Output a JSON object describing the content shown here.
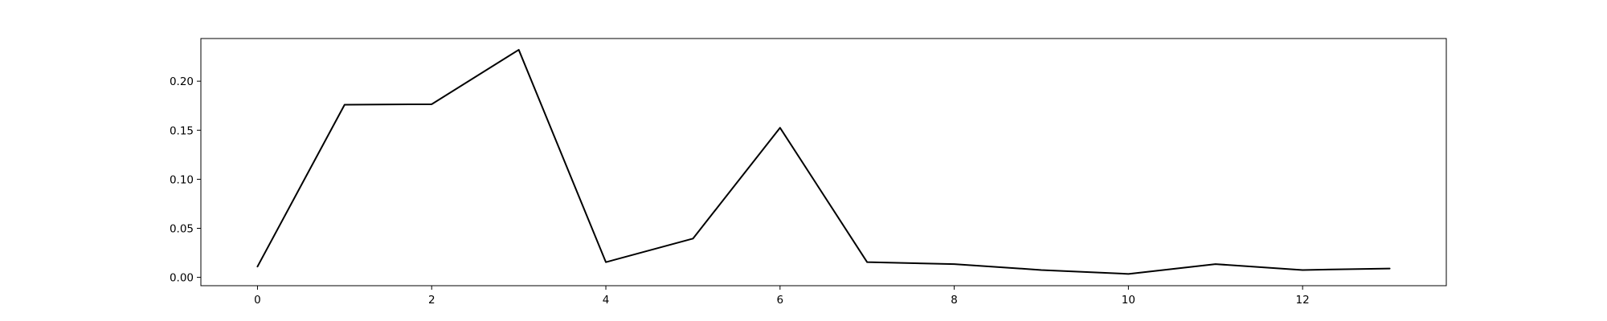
{
  "chart_data": {
    "type": "line",
    "title": "",
    "xlabel": "",
    "ylabel": "",
    "xlim": [
      -0.65,
      13.65
    ],
    "ylim": [
      -0.0085,
      0.2435
    ],
    "x_ticks": [
      0,
      2,
      4,
      6,
      8,
      10,
      12
    ],
    "x_tick_labels": [
      "0",
      "2",
      "4",
      "6",
      "8",
      "10",
      "12"
    ],
    "y_ticks": [
      0.0,
      0.05,
      0.1,
      0.15,
      0.2
    ],
    "y_tick_labels": [
      "0.00",
      "0.05",
      "0.10",
      "0.15",
      "0.20"
    ],
    "grid": false,
    "legend": "none",
    "series": [
      {
        "color": "#000000",
        "x": [
          0,
          1,
          2,
          3,
          4,
          5,
          6,
          7,
          8,
          9,
          10,
          11,
          12,
          13
        ],
        "values": [
          0.011,
          0.176,
          0.1765,
          0.232,
          0.0155,
          0.0395,
          0.1525,
          0.0155,
          0.0135,
          0.0075,
          0.0035,
          0.0135,
          0.0075,
          0.009
        ]
      }
    ]
  }
}
